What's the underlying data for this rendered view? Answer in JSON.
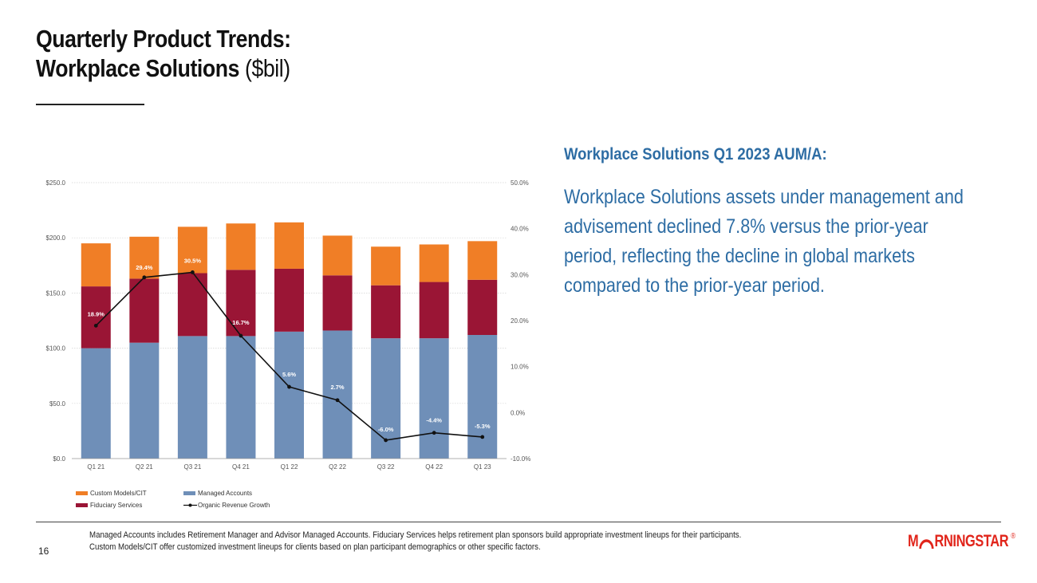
{
  "header": {
    "title_line1": "Quarterly Product Trends:",
    "title_line2_main": "Workplace Solutions",
    "title_line2_unit": "($bil)"
  },
  "side": {
    "heading": "Workplace Solutions Q1 2023 AUM/A:",
    "body": "Workplace Solutions assets under management and advisement declined 7.8% versus the prior-year period, reflecting the decline in global markets compared to the prior-year period."
  },
  "footer": {
    "page_number": "16",
    "note_line1": "Managed Accounts includes Retirement Manager and Advisor Managed Accounts. Fiduciary Services helps retirement plan sponsors build appropriate investment lineups for their participants.",
    "note_line2": "Custom Models/CIT offer customized investment lineups for clients based on plan participant demographics or other specific factors.",
    "logo_left": "M",
    "logo_right": "RNINGSTAR",
    "logo_reg": "®"
  },
  "colors": {
    "managed": "#6f8fb8",
    "fiduciary": "#9a1535",
    "custom": "#f07e26",
    "line": "#111111",
    "accent": "#2e6da4",
    "brand": "#e1251b"
  },
  "chart_data": {
    "type": "bar",
    "stacked": true,
    "categories": [
      "Q1 21",
      "Q2 21",
      "Q3 21",
      "Q4 21",
      "Q1 22",
      "Q2 22",
      "Q3 22",
      "Q4 22",
      "Q1 23"
    ],
    "series": [
      {
        "name": "Managed Accounts",
        "values": [
          100,
          105,
          111,
          111,
          115,
          116,
          109,
          109,
          112
        ]
      },
      {
        "name": "Fiduciary Services",
        "values": [
          56,
          58,
          57,
          60,
          57,
          50,
          48,
          51,
          50
        ]
      },
      {
        "name": "Custom Models/CIT",
        "values": [
          39,
          38,
          42,
          42,
          42,
          36,
          35,
          34,
          35
        ]
      }
    ],
    "line_series": {
      "name": "Organic Revenue Growth",
      "values": [
        18.9,
        29.4,
        30.5,
        16.7,
        5.6,
        2.7,
        -6.0,
        -4.4,
        -5.3
      ],
      "labels": [
        "18.9%",
        "29.4%",
        "30.5%",
        "16.7%",
        "5.6%",
        "2.7%",
        "-6.0%",
        "-4.4%",
        "-5.3%"
      ]
    },
    "ylim": [
      0,
      250
    ],
    "y_ticks": [
      0,
      50,
      100,
      150,
      200,
      250
    ],
    "y_tick_labels": [
      "$0.0",
      "$50.0",
      "$100.0",
      "$150.0",
      "$200.0",
      "$250.0"
    ],
    "y2lim": [
      -10,
      50
    ],
    "y2_ticks": [
      -10,
      0,
      10,
      20,
      30,
      40,
      50
    ],
    "y2_tick_labels": [
      "-10.0%",
      "0.0%",
      "10.0%",
      "20.0%",
      "30.0%",
      "40.0%",
      "50.0%"
    ],
    "legend": [
      {
        "label": "Custom Models/CIT",
        "kind": "bar",
        "series": 2
      },
      {
        "label": "Managed Accounts",
        "kind": "bar",
        "series": 0
      },
      {
        "label": "Fiduciary Services",
        "kind": "bar",
        "series": 1
      },
      {
        "label": "Organic Revenue Growth",
        "kind": "line"
      }
    ],
    "legend_position": "bottom-left",
    "grid": true
  }
}
